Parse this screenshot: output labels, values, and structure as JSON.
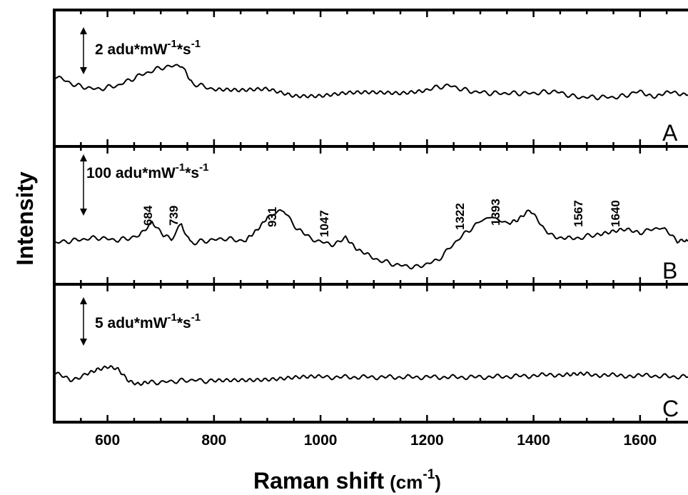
{
  "chart_data": {
    "type": "line",
    "xlabel": "Raman shift",
    "xlabel_unit": "(cm",
    "xlabel_unit_sup": "-1",
    "xlabel_unit_close": ")",
    "ylabel": "Intensity",
    "xlim": [
      500,
      1690
    ],
    "x_ticks": [
      "600",
      "800",
      "1000",
      "1200",
      "1400",
      "1600"
    ],
    "grid": false,
    "panels": [
      {
        "letter": "A",
        "scale_bar": {
          "base": "2 adu*mW",
          "sup1": "-1",
          "mid": "*s",
          "sup2": "-1"
        },
        "x": [
          500,
          540,
          580,
          620,
          660,
          700,
          740,
          760,
          800,
          850,
          900,
          950,
          1000,
          1050,
          1100,
          1150,
          1200,
          1240,
          1280,
          1320,
          1360,
          1400,
          1440,
          1480,
          1520,
          1560,
          1600,
          1630,
          1660,
          1690
        ],
        "y": [
          0.35,
          0.1,
          0.0,
          0.1,
          0.35,
          0.55,
          0.62,
          0.15,
          0.0,
          -0.05,
          0.0,
          -0.15,
          -0.15,
          -0.1,
          -0.1,
          -0.1,
          0.0,
          0.1,
          -0.05,
          -0.1,
          -0.1,
          -0.1,
          -0.05,
          -0.2,
          -0.2,
          -0.2,
          -0.05,
          -0.2,
          -0.05,
          -0.15
        ]
      },
      {
        "letter": "B",
        "scale_bar": {
          "base": "100 adu*mW",
          "sup1": "-1",
          "mid": "*s",
          "sup2": "-1"
        },
        "x": [
          500,
          540,
          580,
          620,
          660,
          684,
          705,
          720,
          739,
          755,
          780,
          820,
          860,
          880,
          900,
          931,
          950,
          980,
          1020,
          1047,
          1070,
          1100,
          1140,
          1180,
          1220,
          1260,
          1300,
          1322,
          1350,
          1370,
          1393,
          1420,
          1450,
          1480,
          1520,
          1567,
          1600,
          1640,
          1670,
          1690
        ],
        "y": [
          0,
          3,
          6,
          3,
          8,
          25,
          8,
          4,
          22,
          0,
          2,
          5,
          2,
          15,
          30,
          38,
          20,
          5,
          -2,
          5,
          -8,
          -18,
          -25,
          -28,
          -20,
          5,
          25,
          30,
          22,
          25,
          38,
          15,
          5,
          5,
          10,
          15,
          12,
          18,
          2,
          2
        ]
      },
      {
        "letter": "C",
        "scale_bar": {
          "base": "5 adu*mW",
          "sup1": "-1",
          "mid": "*s",
          "sup2": "-1"
        },
        "x": [
          500,
          530,
          560,
          580,
          600,
          620,
          640,
          660,
          680,
          720,
          760,
          800,
          850,
          900,
          950,
          1000,
          1100,
          1200,
          1300,
          1400,
          1460,
          1480,
          1500,
          1560,
          1620,
          1690
        ],
        "y": [
          0.3,
          -0.2,
          0.2,
          0.6,
          0.7,
          0.5,
          -0.2,
          -0.5,
          -0.4,
          -0.3,
          -0.2,
          -0.3,
          -0.2,
          -0.1,
          0.0,
          0.0,
          0.0,
          0.0,
          0.0,
          0.1,
          0.2,
          0.3,
          0.2,
          0.1,
          0.1,
          0.0
        ]
      }
    ],
    "peaks": [
      {
        "label": "684",
        "x": 684
      },
      {
        "label": "739",
        "x": 739
      },
      {
        "label": "931",
        "x": 931
      },
      {
        "label": "1047",
        "x": 1047
      },
      {
        "label": "1322",
        "x": 1322
      },
      {
        "label": "1393",
        "x": 1393
      },
      {
        "label": "1567",
        "x": 1567
      },
      {
        "label": "1640",
        "x": 1640
      }
    ]
  }
}
